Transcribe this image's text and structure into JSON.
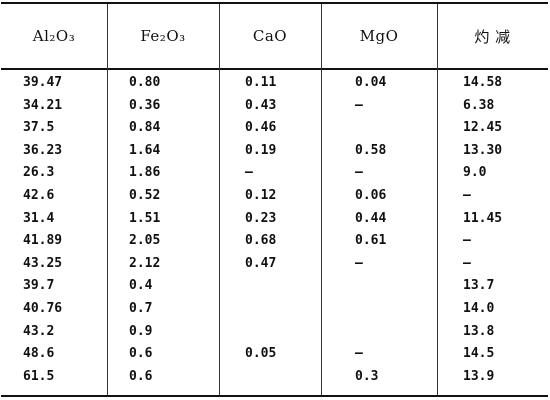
{
  "table": {
    "headers": [
      "Al₂O₃",
      "Fe₂O₃",
      "CaO",
      "MgO",
      "灼  减"
    ],
    "rows": [
      [
        "39.47",
        "0.80",
        "0.11",
        "0.04",
        "14.58"
      ],
      [
        "34.21",
        "0.36",
        "0.43",
        "—",
        "6.38"
      ],
      [
        "37.5",
        "0.84",
        "0.46",
        "",
        "12.45"
      ],
      [
        "36.23",
        "1.64",
        "0.19",
        "0.58",
        "13.30"
      ],
      [
        "26.3",
        "1.86",
        "—",
        "—",
        "9.0"
      ],
      [
        "42.6",
        "0.52",
        "0.12",
        "0.06",
        "—"
      ],
      [
        "31.4",
        "1.51",
        "0.23",
        "0.44",
        "11.45"
      ],
      [
        "41.89",
        "2.05",
        "0.68",
        "0.61",
        "—"
      ],
      [
        "43.25",
        "2.12",
        "0.47",
        "—",
        "—"
      ],
      [
        "39.7",
        "0.4",
        "",
        "",
        "13.7"
      ],
      [
        "40.76",
        "0.7",
        "",
        "",
        "14.0"
      ],
      [
        "43.2",
        "0.9",
        "",
        "",
        "13.8"
      ],
      [
        "48.6",
        "0.6",
        "0.05",
        "—",
        "14.5"
      ],
      [
        "61.5",
        "0.6",
        "",
        "0.3",
        "13.9"
      ]
    ]
  }
}
